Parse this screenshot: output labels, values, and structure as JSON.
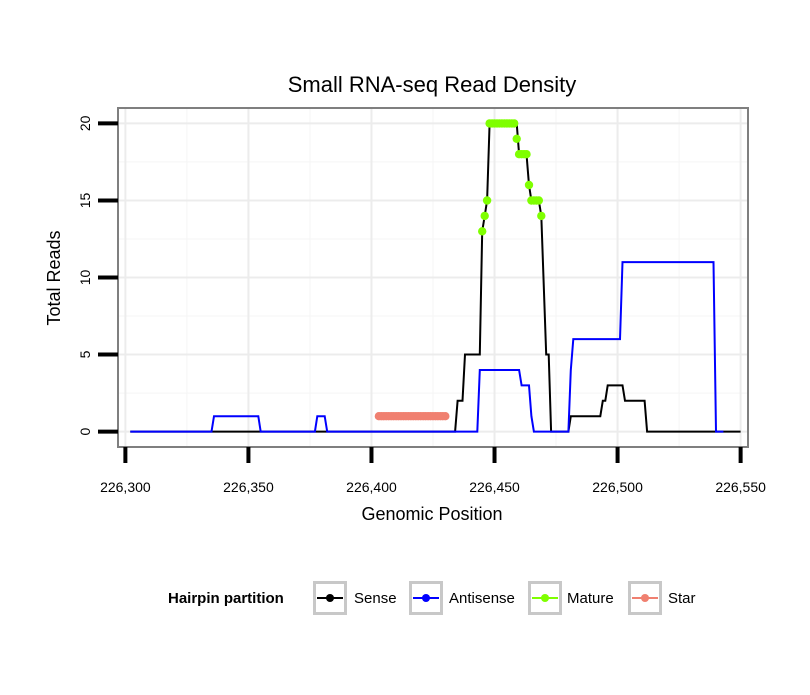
{
  "chart_data": {
    "type": "line",
    "title": "Small RNA-seq Read Density",
    "xlabel": "Genomic Position",
    "ylabel": "Total Reads",
    "xlim": [
      226297,
      226553
    ],
    "ylim": [
      -1,
      21
    ],
    "x_ticks": [
      226300,
      226350,
      226400,
      226450,
      226500,
      226550
    ],
    "x_tick_labels": [
      "226,300",
      "226,350",
      "226,400",
      "226,450",
      "226,500",
      "226,550"
    ],
    "y_ticks": [
      0,
      5,
      10,
      15,
      20
    ],
    "y_tick_labels": [
      "0",
      "5",
      "10",
      "15",
      "20"
    ],
    "grid": true,
    "legend": {
      "title": "Hairpin partition",
      "position": "bottom",
      "entries": [
        {
          "label": "Sense",
          "color": "#000000"
        },
        {
          "label": "Antisense",
          "color": "#0000ff"
        },
        {
          "label": "Mature",
          "color": "#7fff00"
        },
        {
          "label": "Star",
          "color": "#f08070"
        }
      ]
    },
    "series": [
      {
        "name": "Sense",
        "color": "#000000",
        "style": "line",
        "points": [
          [
            226302,
            0
          ],
          [
            226434,
            0
          ],
          [
            226435,
            2
          ],
          [
            226437,
            2
          ],
          [
            226438,
            5
          ],
          [
            226444,
            5
          ],
          [
            226445,
            13
          ],
          [
            226446,
            14
          ],
          [
            226447,
            15
          ],
          [
            226448,
            20
          ],
          [
            226459,
            20
          ],
          [
            226460,
            18
          ],
          [
            226463,
            18
          ],
          [
            226464,
            16
          ],
          [
            226465,
            15
          ],
          [
            226468,
            15
          ],
          [
            226469,
            14
          ],
          [
            226471,
            5
          ],
          [
            226472,
            5
          ],
          [
            226473,
            0
          ],
          [
            226480,
            0
          ],
          [
            226481,
            1
          ],
          [
            226493,
            1
          ],
          [
            226494,
            2
          ],
          [
            226495,
            2
          ],
          [
            226496,
            3
          ],
          [
            226502,
            3
          ],
          [
            226503,
            2
          ],
          [
            226511,
            2
          ],
          [
            226512,
            0
          ],
          [
            226550,
            0
          ]
        ]
      },
      {
        "name": "Antisense",
        "color": "#0000ff",
        "style": "line",
        "points": [
          [
            226302,
            0
          ],
          [
            226335,
            0
          ],
          [
            226336,
            1
          ],
          [
            226354,
            1
          ],
          [
            226355,
            0
          ],
          [
            226377,
            0
          ],
          [
            226378,
            1
          ],
          [
            226381,
            1
          ],
          [
            226382,
            0
          ],
          [
            226443,
            0
          ],
          [
            226444,
            4
          ],
          [
            226460,
            4
          ],
          [
            226461,
            3
          ],
          [
            226464,
            3
          ],
          [
            226465,
            1
          ],
          [
            226466,
            0
          ],
          [
            226480,
            0
          ],
          [
            226481,
            4
          ],
          [
            226482,
            6
          ],
          [
            226501,
            6
          ],
          [
            226502,
            11
          ],
          [
            226539,
            11
          ],
          [
            226540,
            0
          ],
          [
            226543,
            0
          ]
        ]
      },
      {
        "name": "Mature",
        "color": "#7fff00",
        "style": "points",
        "points": [
          [
            226445,
            13
          ],
          [
            226446,
            14
          ],
          [
            226447,
            15
          ],
          [
            226448,
            20
          ],
          [
            226449,
            20
          ],
          [
            226450,
            20
          ],
          [
            226451,
            20
          ],
          [
            226452,
            20
          ],
          [
            226453,
            20
          ],
          [
            226454,
            20
          ],
          [
            226455,
            20
          ],
          [
            226456,
            20
          ],
          [
            226457,
            20
          ],
          [
            226458,
            20
          ],
          [
            226459,
            19
          ],
          [
            226460,
            18
          ],
          [
            226461,
            18
          ],
          [
            226462,
            18
          ],
          [
            226463,
            18
          ],
          [
            226464,
            16
          ],
          [
            226465,
            15
          ],
          [
            226466,
            15
          ],
          [
            226467,
            15
          ],
          [
            226468,
            15
          ],
          [
            226469,
            14
          ]
        ]
      },
      {
        "name": "Star",
        "color": "#f08070",
        "style": "points",
        "points": [
          [
            226403,
            1
          ],
          [
            226404,
            1
          ],
          [
            226405,
            1
          ],
          [
            226406,
            1
          ],
          [
            226407,
            1
          ],
          [
            226408,
            1
          ],
          [
            226409,
            1
          ],
          [
            226410,
            1
          ],
          [
            226411,
            1
          ],
          [
            226412,
            1
          ],
          [
            226413,
            1
          ],
          [
            226414,
            1
          ],
          [
            226415,
            1
          ],
          [
            226416,
            1
          ],
          [
            226417,
            1
          ],
          [
            226418,
            1
          ],
          [
            226419,
            1
          ],
          [
            226420,
            1
          ],
          [
            226421,
            1
          ],
          [
            226422,
            1
          ],
          [
            226423,
            1
          ],
          [
            226424,
            1
          ],
          [
            226425,
            1
          ],
          [
            226426,
            1
          ],
          [
            226427,
            1
          ],
          [
            226428,
            1
          ],
          [
            226429,
            1
          ],
          [
            226430,
            1
          ]
        ]
      }
    ]
  }
}
